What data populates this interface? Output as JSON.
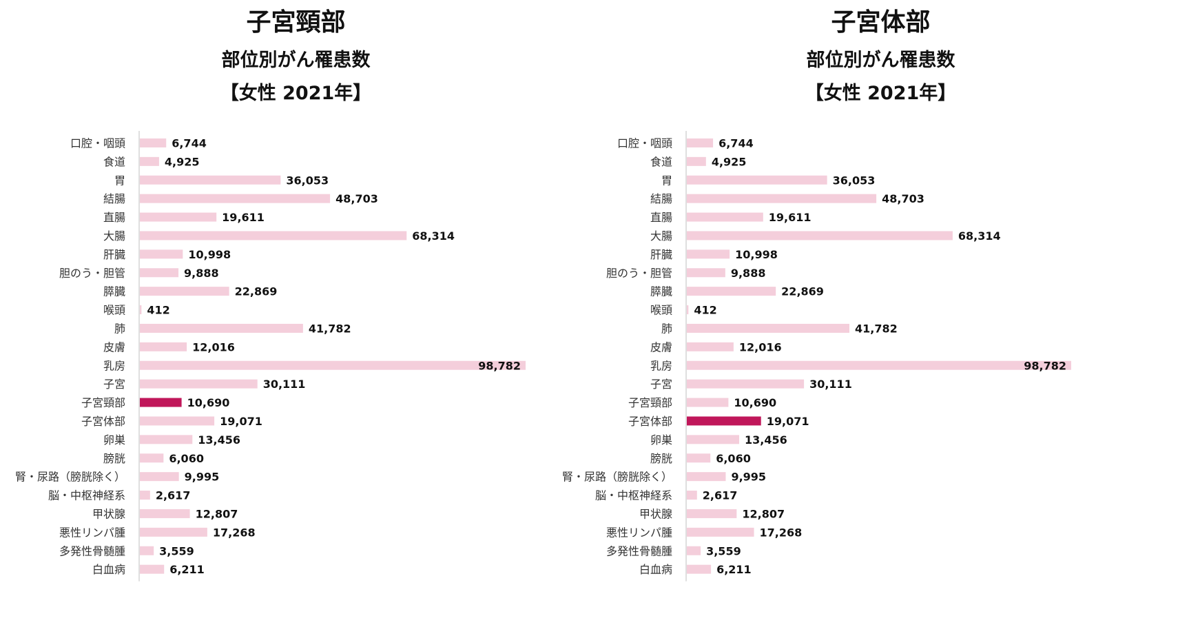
{
  "chart_data": [
    {
      "type": "bar",
      "orientation": "horizontal",
      "title": "子宮頸部",
      "subtitle": "部位別がん罹患数",
      "subtitle2": "【女性 2021年】",
      "categories": [
        "口腔・咽頭",
        "食道",
        "胃",
        "結腸",
        "直腸",
        "大腸",
        "肝臓",
        "胆のう・胆管",
        "膵臓",
        "喉頭",
        "肺",
        "皮膚",
        "乳房",
        "子宮",
        "子宮頸部",
        "子宮体部",
        "卵巣",
        "膀胱",
        "腎・尿路（膀胱除く）",
        "脳・中枢神経系",
        "甲状腺",
        "悪性リンパ腫",
        "多発性骨髄腫",
        "白血病"
      ],
      "values": [
        6744,
        4925,
        36053,
        48703,
        19611,
        68314,
        10998,
        9888,
        22869,
        412,
        41782,
        12016,
        98782,
        30111,
        10690,
        19071,
        13456,
        6060,
        9995,
        2617,
        12807,
        17268,
        3559,
        6211
      ],
      "value_labels": [
        "6,744",
        "4,925",
        "36,053",
        "48,703",
        "19,611",
        "68,314",
        "10,998",
        "9,888",
        "22,869",
        "412",
        "41,782",
        "12,016",
        "98,782",
        "30,111",
        "10,690",
        "19,071",
        "13,456",
        "6,060",
        "9,995",
        "2,617",
        "12,807",
        "17,268",
        "3,559",
        "6,211"
      ],
      "highlight": "子宮頸部",
      "xlim": [
        0,
        98782
      ],
      "grid": false,
      "legend": "none"
    },
    {
      "type": "bar",
      "orientation": "horizontal",
      "title": "子宮体部",
      "subtitle": "部位別がん罹患数",
      "subtitle2": "【女性 2021年】",
      "categories": [
        "口腔・咽頭",
        "食道",
        "胃",
        "結腸",
        "直腸",
        "大腸",
        "肝臓",
        "胆のう・胆管",
        "膵臓",
        "喉頭",
        "肺",
        "皮膚",
        "乳房",
        "子宮",
        "子宮頸部",
        "子宮体部",
        "卵巣",
        "膀胱",
        "腎・尿路（膀胱除く）",
        "脳・中枢神経系",
        "甲状腺",
        "悪性リンパ腫",
        "多発性骨髄腫",
        "白血病"
      ],
      "values": [
        6744,
        4925,
        36053,
        48703,
        19611,
        68314,
        10998,
        9888,
        22869,
        412,
        41782,
        12016,
        98782,
        30111,
        10690,
        19071,
        13456,
        6060,
        9995,
        2617,
        12807,
        17268,
        3559,
        6211
      ],
      "value_labels": [
        "6,744",
        "4,925",
        "36,053",
        "48,703",
        "19,611",
        "68,314",
        "10,998",
        "9,888",
        "22,869",
        "412",
        "41,782",
        "12,016",
        "98,782",
        "30,111",
        "10,690",
        "19,071",
        "13,456",
        "6,060",
        "9,995",
        "2,617",
        "12,807",
        "17,268",
        "3,559",
        "6,211"
      ],
      "highlight": "子宮体部",
      "xlim": [
        0,
        98782
      ],
      "grid": false,
      "legend": "none"
    }
  ],
  "colors": {
    "bar": "#f4cedb",
    "highlight": "#c0175a",
    "axis": "#bfbfbf"
  }
}
